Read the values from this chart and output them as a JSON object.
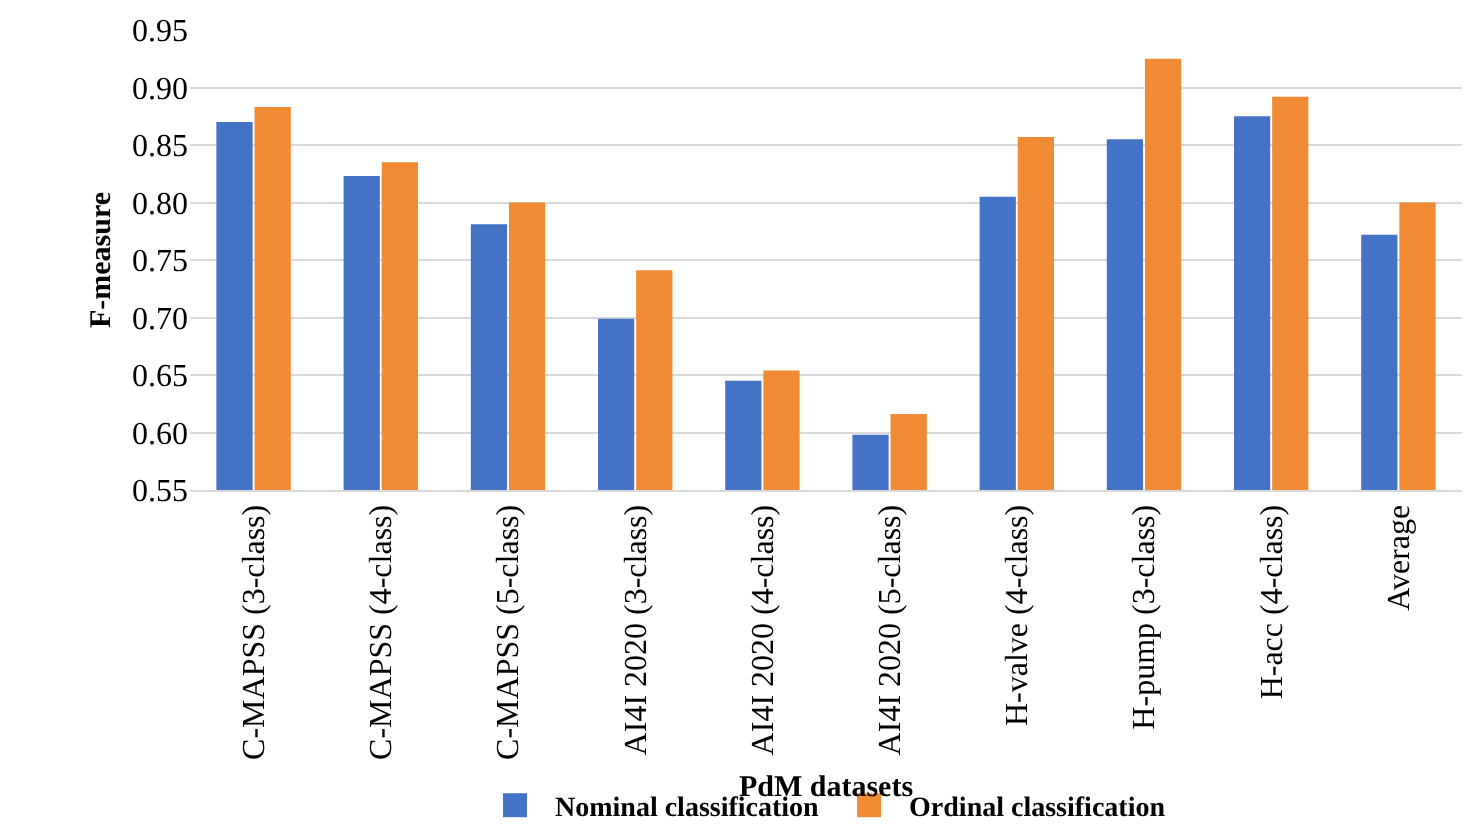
{
  "chart_data": {
    "type": "bar",
    "xlabel": "PdM datasets",
    "ylabel": "F-measure",
    "categories": [
      "C-MAPSS (3-class)",
      "C-MAPSS (4-class)",
      "C-MAPSS (5-class)",
      "AI4I 2020 (3-class)",
      "AI4I 2020 (4-class)",
      "AI4I 2020 (5-class)",
      "H-valve (4-class)",
      "H-pump (3-class)",
      "H-acc (4-class)",
      "Average"
    ],
    "series": [
      {
        "name": "Nominal classification",
        "color": "#4472c4",
        "values": [
          0.87,
          0.823,
          0.781,
          0.699,
          0.645,
          0.598,
          0.805,
          0.855,
          0.875,
          0.772
        ]
      },
      {
        "name": "Ordinal classification",
        "color": "#f08a33",
        "values": [
          0.883,
          0.835,
          0.8,
          0.741,
          0.654,
          0.616,
          0.857,
          0.925,
          0.892,
          0.8
        ]
      }
    ],
    "ylim": [
      0.55,
      0.95
    ],
    "yticks": [
      {
        "value": 0.55,
        "label": "0.55"
      },
      {
        "value": 0.6,
        "label": "0.60"
      },
      {
        "value": 0.65,
        "label": "0.65"
      },
      {
        "value": 0.7,
        "label": "0.70"
      },
      {
        "value": 0.75,
        "label": "0.75"
      },
      {
        "value": 0.8,
        "label": "0.80"
      },
      {
        "value": 0.85,
        "label": "0.85"
      },
      {
        "value": 0.9,
        "label": "0.90"
      },
      {
        "value": 0.95,
        "label": "0.95"
      }
    ],
    "grid": "y",
    "legend": "bottom"
  }
}
